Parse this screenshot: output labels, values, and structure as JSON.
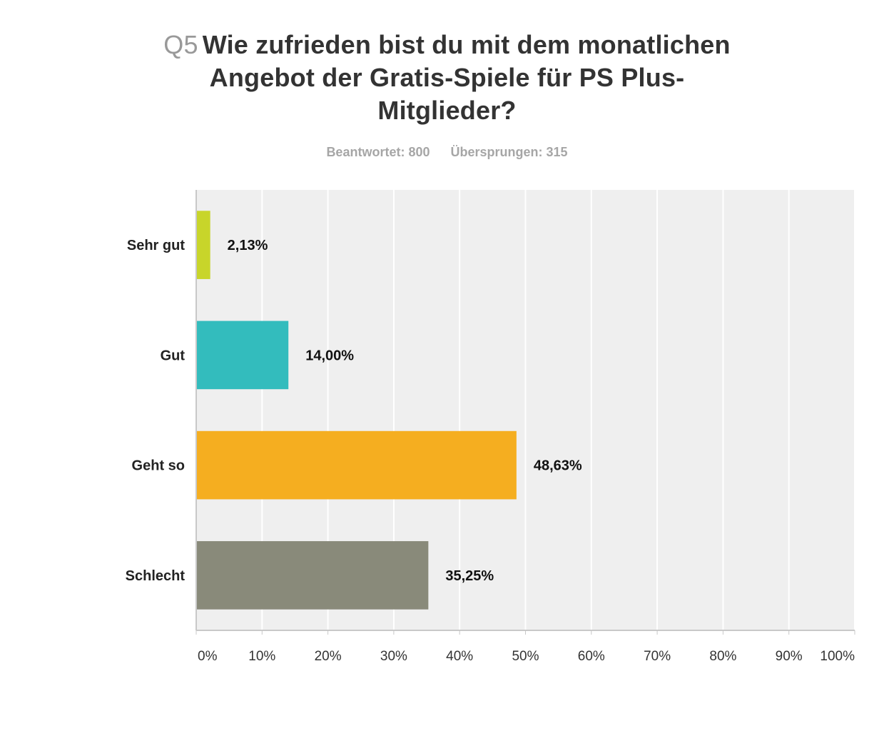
{
  "question": {
    "number": "Q5",
    "text": "Wie zufrieden bist du mit dem monatlichen Angebot der Gratis-Spiele für PS Plus-Mitglieder?"
  },
  "stats": {
    "answered": "Beantwortet: 800",
    "skipped": "Übersprungen: 315"
  },
  "chart_data": {
    "type": "bar",
    "orientation": "horizontal",
    "categories": [
      "Sehr gut",
      "Gut",
      "Geht so",
      "Schlecht"
    ],
    "values": [
      2.13,
      14.0,
      48.63,
      35.25
    ],
    "value_labels": [
      "2,13%",
      "14,00%",
      "48,63%",
      "35,25%"
    ],
    "colors": [
      "#c8d52a",
      "#33bcbd",
      "#f5ae20",
      "#898a7a"
    ],
    "xlim": [
      0,
      100
    ],
    "ticks": [
      "0%",
      "10%",
      "20%",
      "30%",
      "40%",
      "50%",
      "60%",
      "70%",
      "80%",
      "90%",
      "100%"
    ],
    "grid": true,
    "background": "#efefef",
    "legend": "none",
    "title": "Q5 Wie zufrieden bist du mit dem monatlichen Angebot der Gratis-Spiele für PS Plus-Mitglieder?",
    "xlabel": "",
    "ylabel": ""
  }
}
